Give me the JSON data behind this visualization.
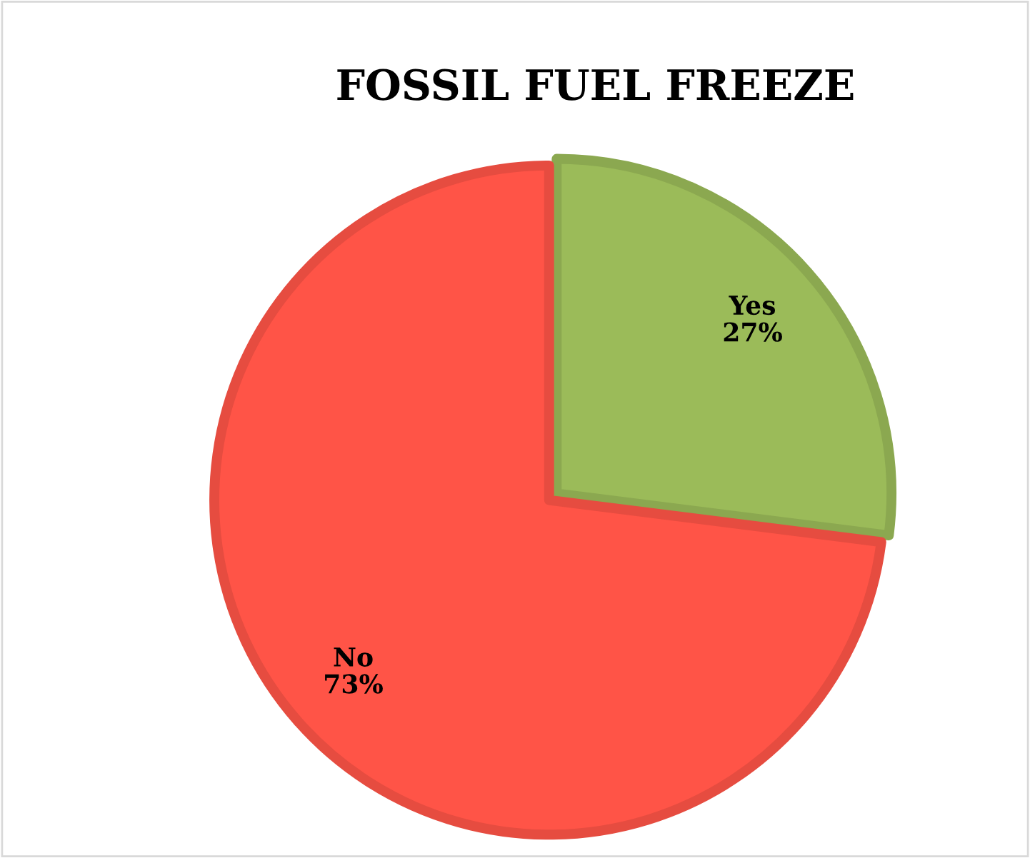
{
  "chart_data": {
    "type": "pie",
    "title": "FOSSIL FUEL FREEZE",
    "categories": [
      "Yes",
      "No"
    ],
    "values": [
      27,
      73
    ],
    "value_labels": [
      "27%",
      "73%"
    ],
    "colors": [
      "#9bbb59",
      "#ff5447"
    ],
    "legend": false
  }
}
